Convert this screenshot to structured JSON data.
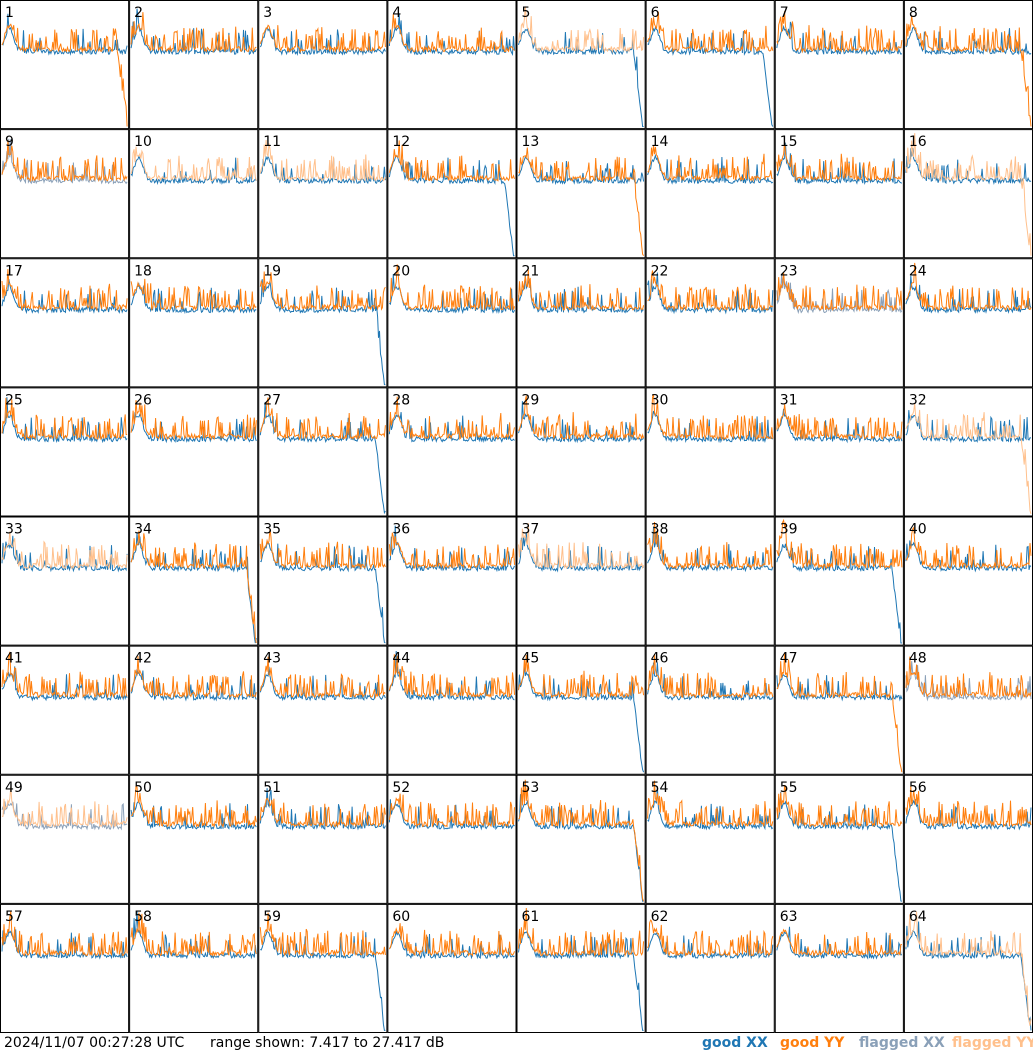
{
  "chart_data": {
    "type": "line",
    "description": "64 panels of per-antenna bandpass spectra (XX and YY polarization), 8x8 grid",
    "panel_numbers": [
      "1",
      "2",
      "3",
      "4",
      "5",
      "6",
      "7",
      "8",
      "9",
      "10",
      "11",
      "12",
      "13",
      "14",
      "15",
      "16",
      "17",
      "18",
      "19",
      "20",
      "21",
      "22",
      "23",
      "24",
      "25",
      "26",
      "27",
      "28",
      "29",
      "30",
      "31",
      "32",
      "33",
      "34",
      "35",
      "36",
      "37",
      "38",
      "39",
      "40",
      "41",
      "42",
      "43",
      "44",
      "45",
      "46",
      "47",
      "48",
      "49",
      "50",
      "51",
      "52",
      "53",
      "54",
      "55",
      "56",
      "57",
      "58",
      "59",
      "60",
      "61",
      "62",
      "63",
      "64"
    ],
    "y_range_db": [
      7.417,
      27.417
    ],
    "series_legend": [
      "good XX",
      "good YY",
      "flagged XX",
      "flagged YY"
    ],
    "colors": {
      "good_xx": "#1f77b4",
      "good_yy": "#ff7f0e",
      "flagged_xx": "#8aa0b8",
      "flagged_yy": "#ffc08c"
    },
    "xx_flagged_panels": [
      9,
      23,
      48,
      49
    ],
    "yy_flagged_panels": [
      5,
      10,
      11,
      16,
      32,
      33,
      37,
      49,
      64
    ],
    "xx_dropouts": [
      5,
      6,
      12,
      19,
      27,
      34,
      35,
      39,
      45,
      53,
      55,
      59,
      61,
      64
    ],
    "yy_dropouts": [
      1,
      8,
      13,
      16,
      32,
      34,
      47,
      53,
      64
    ]
  },
  "footer": {
    "timestamp": "2024/11/07 00:27:28 UTC",
    "range_text": "range shown: 7.417 to 27.417 dB",
    "legend": {
      "good_xx": "good XX",
      "good_yy": "good YY",
      "flagged_xx": "flagged XX",
      "flagged_yy": "flagged YY"
    }
  }
}
